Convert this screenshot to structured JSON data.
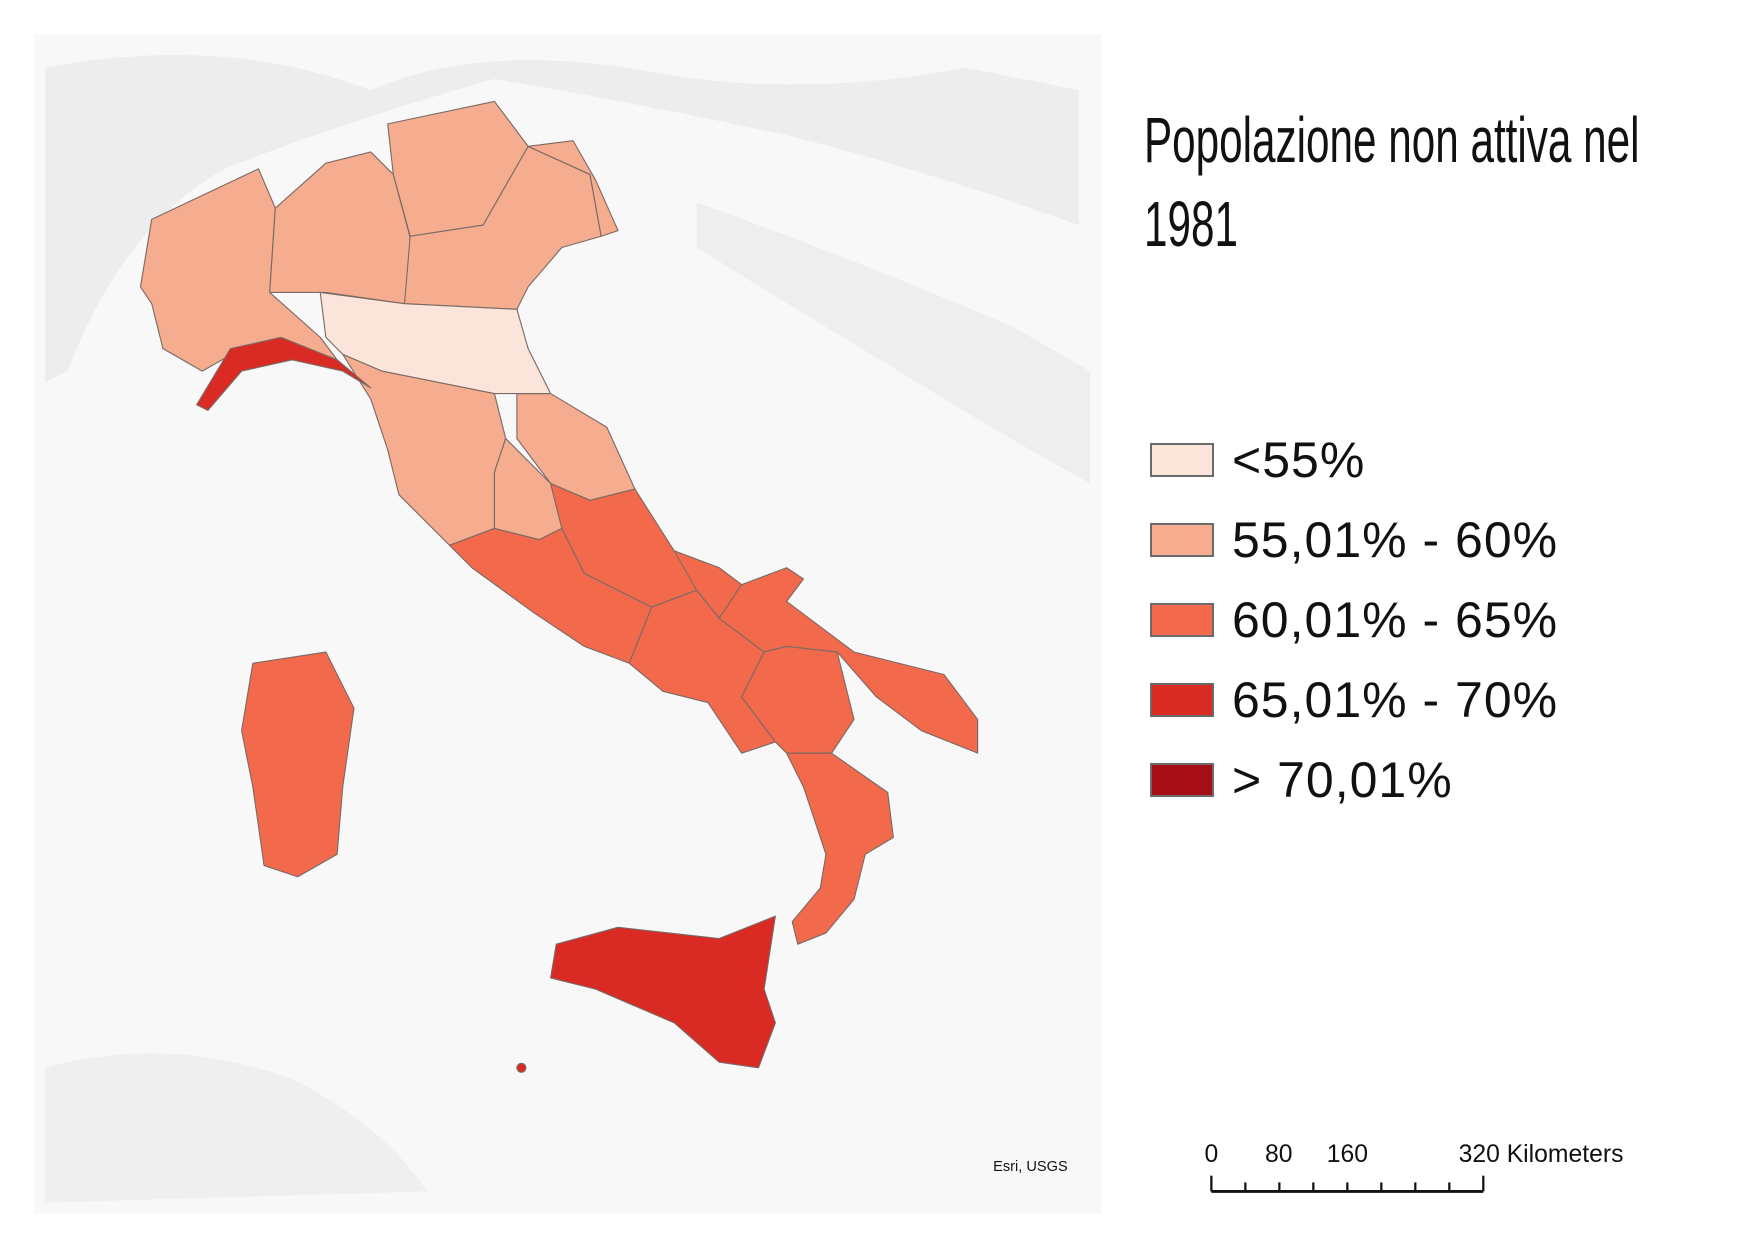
{
  "title": "Popolazione non attiva nel 1981",
  "legend": {
    "items": [
      {
        "label": "<55%",
        "color": "#fbe4d9"
      },
      {
        "label": "55,01% - 60%",
        "color": "#f6ad8f"
      },
      {
        "label": "60,01% - 65%",
        "color": "#f26a4b"
      },
      {
        "label": "65,01% - 70%",
        "color": "#d92a24"
      },
      {
        "label": "> 70,01%",
        "color": "#a50f15"
      }
    ]
  },
  "attribution": "Esri, USGS",
  "scale_bar": {
    "labels": [
      "0",
      "80",
      "160",
      "320 Kilometers"
    ]
  }
}
